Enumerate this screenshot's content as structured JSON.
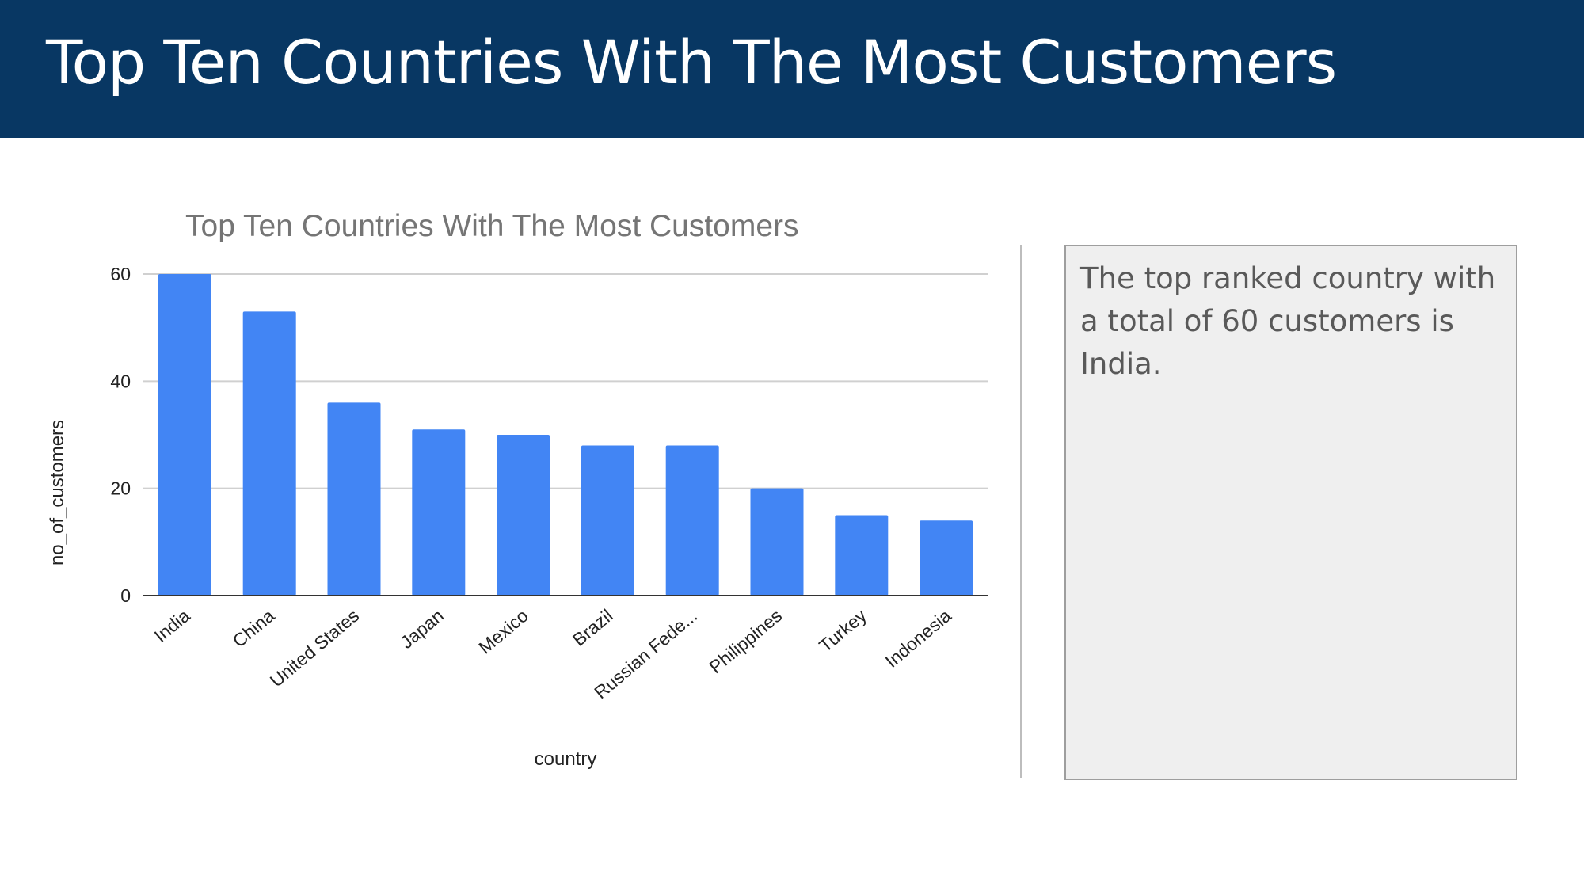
{
  "slide": {
    "title": "Top Ten Countries With The Most Customers"
  },
  "note": {
    "text": "The top ranked country with a total of 60 customers is India."
  },
  "chart_data": {
    "type": "bar",
    "title": "Top Ten Countries With The Most Customers",
    "xlabel": "country",
    "ylabel": "no_of_customers",
    "categories": [
      "India",
      "China",
      "United States",
      "Japan",
      "Mexico",
      "Brazil",
      "Russian Fede...",
      "Philippines",
      "Turkey",
      "Indonesia"
    ],
    "series": [
      {
        "values": [
          60,
          53,
          36,
          31,
          30,
          28,
          28,
          20,
          15,
          14
        ]
      }
    ],
    "ylim": [
      0,
      60
    ],
    "yticks": [
      0,
      20,
      40,
      60
    ],
    "grid": true,
    "legend": "none",
    "colors": {
      "bar": "#4285f4",
      "grid": "#d0d0d0",
      "axis": "#333333",
      "title": "#757575"
    }
  }
}
